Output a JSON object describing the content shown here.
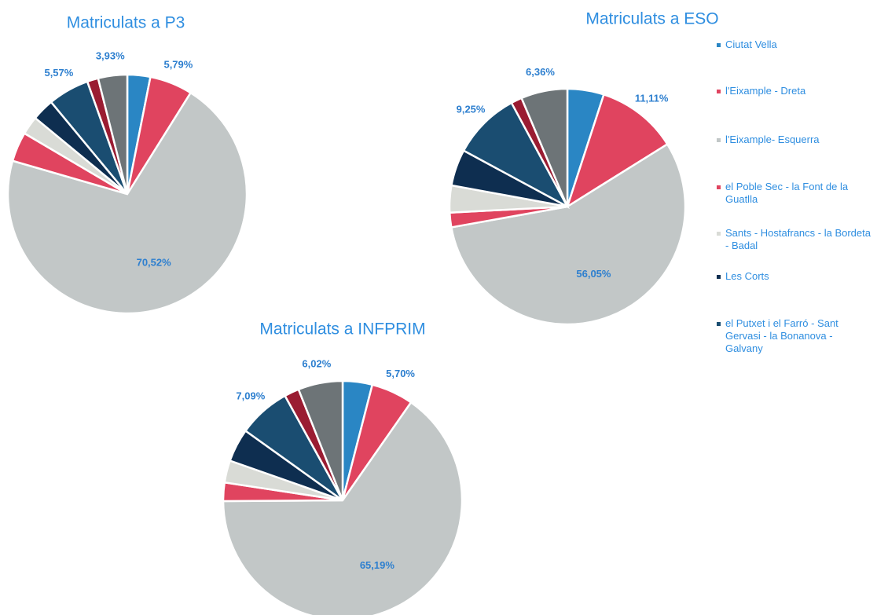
{
  "chart_data": [
    {
      "type": "pie",
      "title": "Matriculats a P3",
      "categories": [
        "Ciutat Vella",
        "l'Eixample - Dreta",
        "l'Eixample- Esquerra",
        "el Poble Sec - la Font de la Guatlla",
        "Sants - Hostafrancs - la Bordeta - Badal",
        "Les Corts",
        "el Putxet i el Farró - Sant Gervasi - la Bonanova - Galvany",
        null,
        null
      ],
      "colors": [
        "#2a86c4",
        "#e0445f",
        "#c2c7c7",
        "#e0445f",
        "#d9dbd6",
        "#0e2e50",
        "#1a4d71",
        "#9a1c32",
        "#6d7477"
      ],
      "values": [
        3.1,
        5.79,
        70.52,
        4,
        2.5,
        3,
        5.57,
        1.5,
        3.93
      ],
      "value_labels": [
        null,
        "5,79%",
        "70,52%",
        null,
        null,
        null,
        "5,57%",
        null,
        "3,93%"
      ]
    },
    {
      "type": "pie",
      "title": "Matriculats a ESO",
      "categories": [
        "Ciutat Vella",
        "l'Eixample - Dreta",
        "l'Eixample- Esquerra",
        "el Poble Sec - la Font de la Guatlla",
        "Sants - Hostafrancs - la Bordeta - Badal",
        "Les Corts",
        "el Putxet i el Farró - Sant Gervasi - la Bonanova - Galvany",
        null,
        null
      ],
      "colors": [
        "#2a86c4",
        "#e0445f",
        "#c2c7c7",
        "#e0445f",
        "#d9dbd6",
        "#0e2e50",
        "#1a4d71",
        "#9a1c32",
        "#6d7477"
      ],
      "values": [
        5,
        11.11,
        56.05,
        2,
        3.7,
        5,
        9.25,
        1.5,
        6.36
      ],
      "value_labels": [
        null,
        "11,11%",
        "56,05%",
        null,
        null,
        null,
        "9,25%",
        null,
        "6,36%"
      ]
    },
    {
      "type": "pie",
      "title": "Matriculats a INFPRIM",
      "categories": [
        "Ciutat Vella",
        "l'Eixample - Dreta",
        "l'Eixample- Esquerra",
        "el Poble Sec - la Font de la Guatlla",
        "Sants - Hostafrancs - la Bordeta - Badal",
        "Les Corts",
        "el Putxet i el Farró - Sant Gervasi - la Bonanova - Galvany",
        null,
        null
      ],
      "colors": [
        "#2a86c4",
        "#e0445f",
        "#c2c7c7",
        "#e0445f",
        "#d9dbd6",
        "#0e2e50",
        "#1a4d71",
        "#9a1c32",
        "#6d7477"
      ],
      "values": [
        4,
        5.7,
        65.19,
        2.5,
        3,
        4.5,
        7.09,
        2,
        6.02
      ],
      "value_labels": [
        null,
        "5,70%",
        "65,19%",
        null,
        null,
        null,
        "7,09%",
        null,
        "6,02%"
      ]
    }
  ]
}
